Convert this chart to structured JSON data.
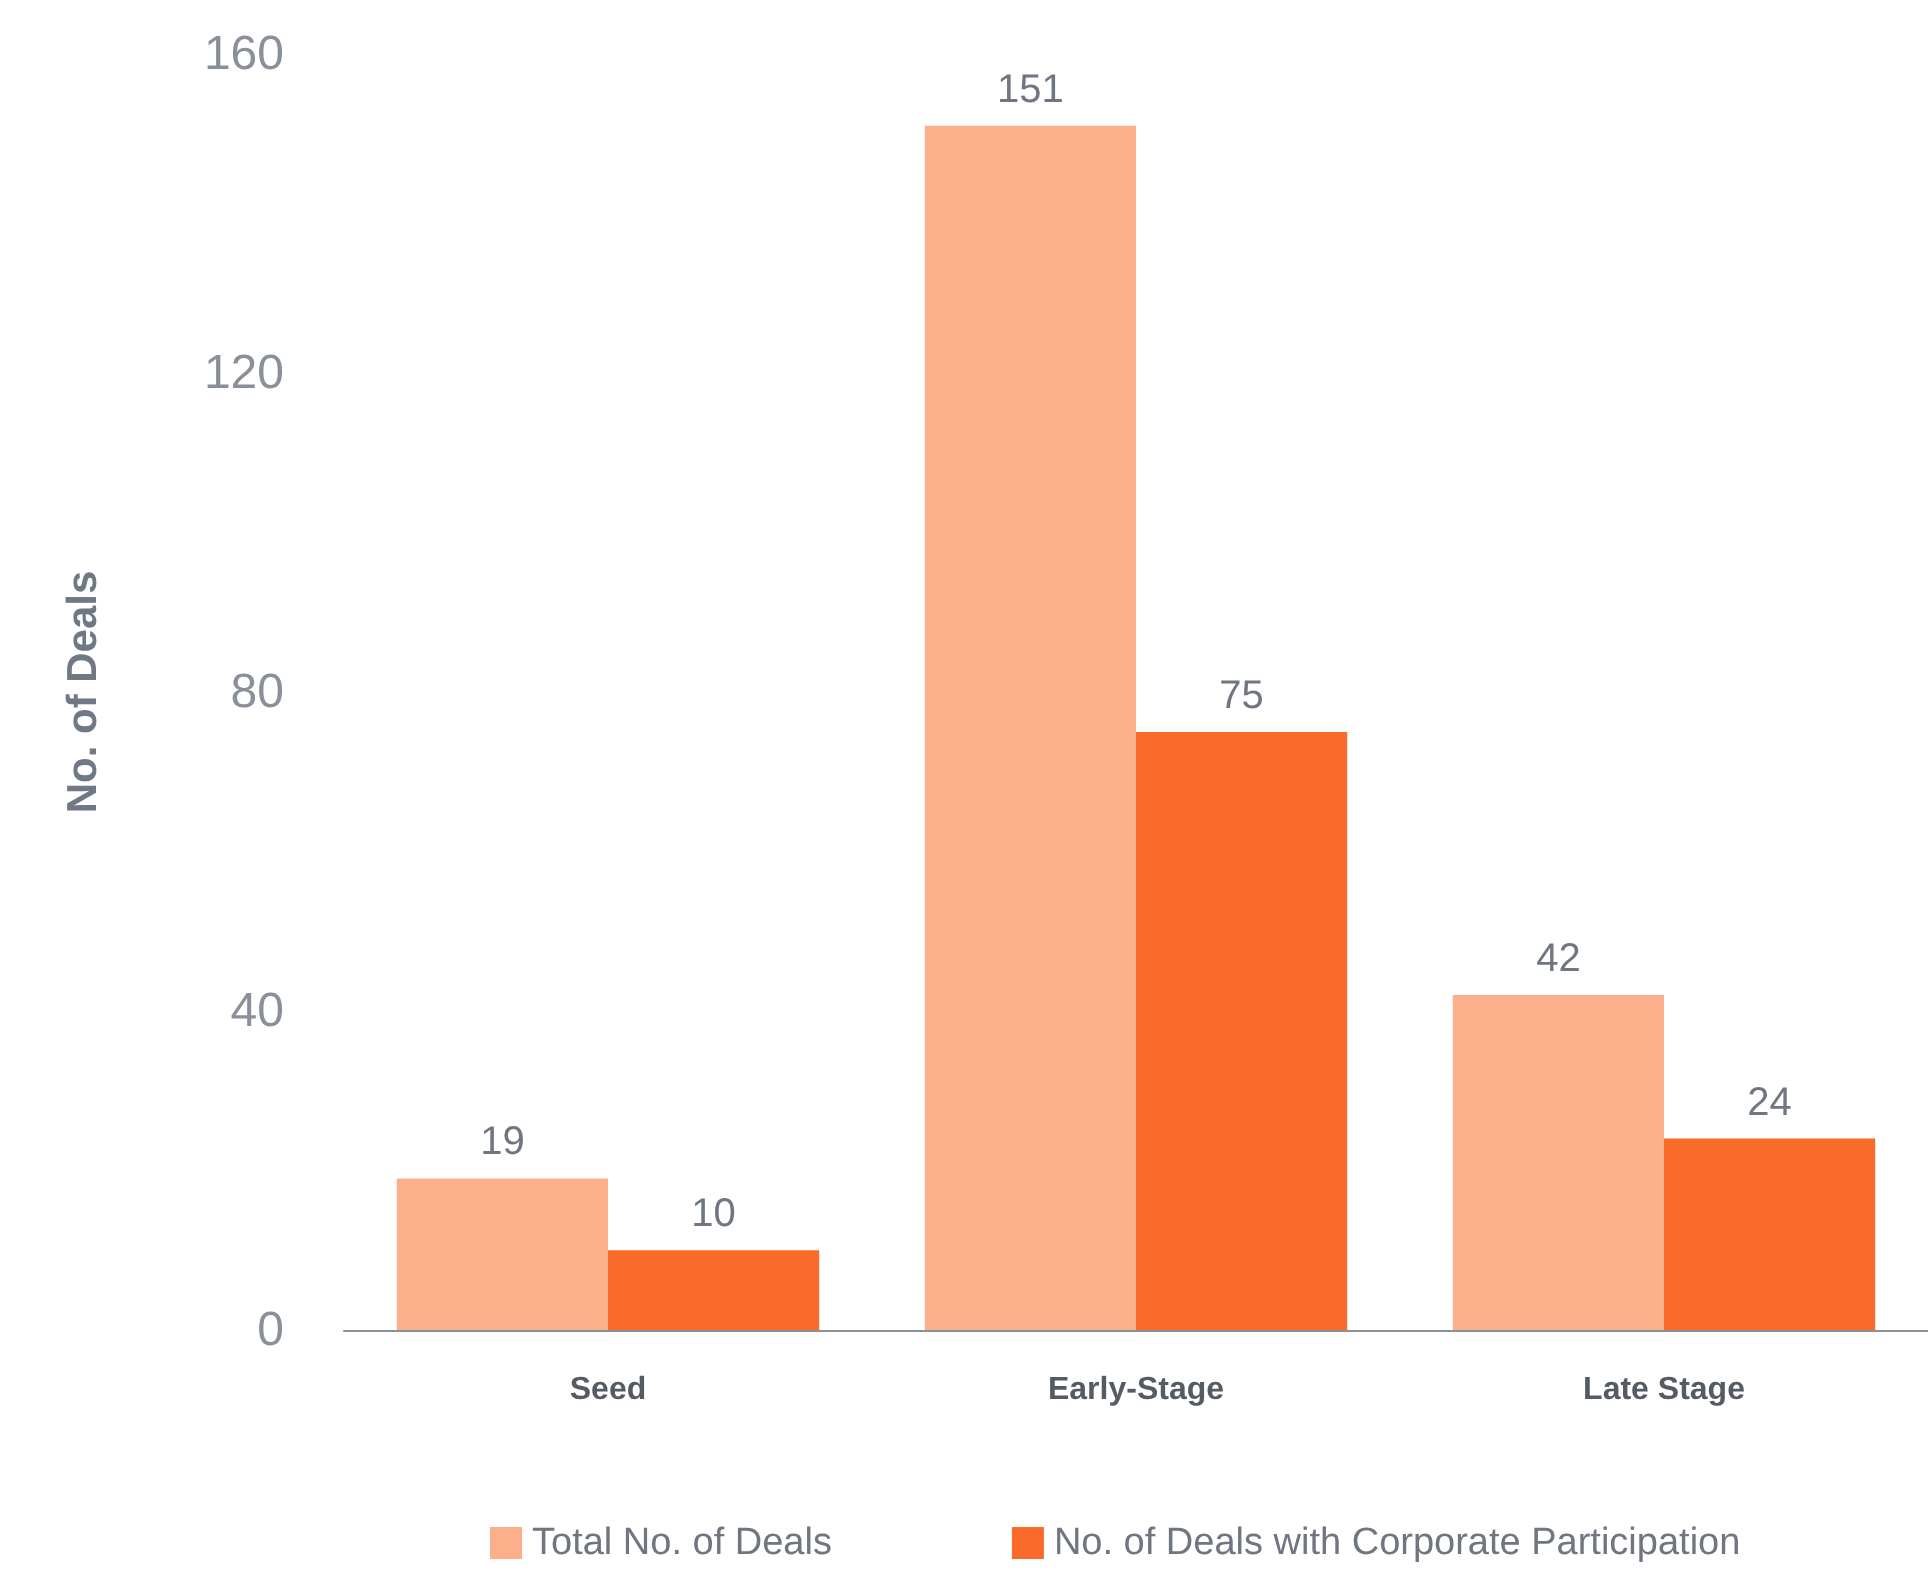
{
  "chart_data": {
    "type": "bar",
    "ylabel": "No. of Deals",
    "categories": [
      "Seed",
      "Early-Stage",
      "Late Stage"
    ],
    "series": [
      {
        "name": "Total No. of Deals",
        "color": "#fbb08b",
        "values": [
          19,
          151,
          42
        ]
      },
      {
        "name": "No. of Deals with Corporate Participation",
        "color": "#f86b28",
        "values": [
          10,
          75,
          24
        ]
      }
    ],
    "ylim": [
      0,
      160
    ],
    "yticks": [
      0,
      40,
      80,
      120,
      160
    ],
    "grid": false,
    "legend": "bottom",
    "data_labels": true
  }
}
